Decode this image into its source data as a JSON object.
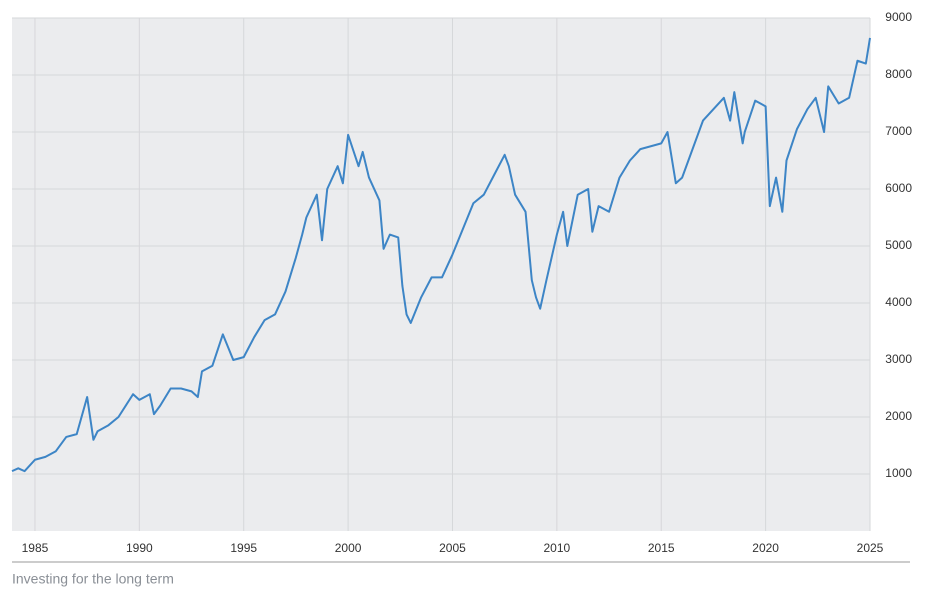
{
  "chart_data": {
    "type": "line",
    "caption": "Investing for the long term",
    "color": "#3d85c6",
    "grid": true,
    "xlim": [
      1983.9,
      2025
    ],
    "xticks": [
      1985,
      1990,
      1995,
      2000,
      2005,
      2010,
      2015,
      2020,
      2025
    ],
    "ylim": [
      0,
      9000
    ],
    "yticks": [
      1000,
      2000,
      3000,
      4000,
      5000,
      6000,
      7000,
      8000,
      9000
    ],
    "x": [
      1983.9,
      1984.2,
      1984.5,
      1985.0,
      1985.5,
      1986.0,
      1986.5,
      1987.0,
      1987.5,
      1987.8,
      1988.0,
      1988.5,
      1989.0,
      1989.7,
      1990.0,
      1990.5,
      1990.7,
      1991.0,
      1991.5,
      1992.0,
      1992.5,
      1992.8,
      1993.0,
      1993.5,
      1994.0,
      1994.5,
      1995.0,
      1995.5,
      1996.0,
      1996.5,
      1997.0,
      1997.5,
      1997.8,
      1998.0,
      1998.5,
      1998.75,
      1999.0,
      1999.5,
      1999.75,
      2000.0,
      2000.5,
      2000.7,
      2001.0,
      2001.5,
      2001.7,
      2002.0,
      2002.4,
      2002.6,
      2002.8,
      2003.0,
      2003.5,
      2004.0,
      2004.5,
      2005.0,
      2005.5,
      2006.0,
      2006.5,
      2007.0,
      2007.5,
      2007.7,
      2008.0,
      2008.5,
      2008.8,
      2009.0,
      2009.2,
      2009.5,
      2010.0,
      2010.3,
      2010.5,
      2011.0,
      2011.5,
      2011.7,
      2012.0,
      2012.5,
      2013.0,
      2013.5,
      2014.0,
      2014.5,
      2015.0,
      2015.3,
      2015.7,
      2016.0,
      2016.5,
      2017.0,
      2017.5,
      2018.0,
      2018.3,
      2018.5,
      2018.9,
      2019.0,
      2019.5,
      2020.0,
      2020.2,
      2020.5,
      2020.8,
      2021.0,
      2021.5,
      2022.0,
      2022.4,
      2022.8,
      2023.0,
      2023.5,
      2024.0,
      2024.4,
      2024.8,
      2025.0
    ],
    "values": [
      1050,
      1100,
      1050,
      1250,
      1300,
      1400,
      1650,
      1700,
      2350,
      1600,
      1750,
      1850,
      2000,
      2400,
      2300,
      2400,
      2050,
      2200,
      2500,
      2500,
      2450,
      2350,
      2800,
      2900,
      3450,
      3000,
      3050,
      3400,
      3700,
      3800,
      4200,
      4800,
      5200,
      5500,
      5900,
      5100,
      6000,
      6400,
      6100,
      6950,
      6400,
      6650,
      6200,
      5800,
      4950,
      5200,
      5150,
      4300,
      3800,
      3650,
      4100,
      4450,
      4450,
      4850,
      5300,
      5750,
      5900,
      6250,
      6600,
      6400,
      5900,
      5600,
      4400,
      4100,
      3900,
      4400,
      5200,
      5600,
      5000,
      5900,
      6000,
      5250,
      5700,
      5600,
      6200,
      6500,
      6700,
      6750,
      6800,
      7000,
      6100,
      6200,
      6700,
      7200,
      7400,
      7600,
      7200,
      7700,
      6800,
      7000,
      7550,
      7450,
      5700,
      6200,
      5600,
      6500,
      7050,
      7400,
      7600,
      7000,
      7800,
      7500,
      7600,
      8250,
      8200,
      8650
    ]
  }
}
